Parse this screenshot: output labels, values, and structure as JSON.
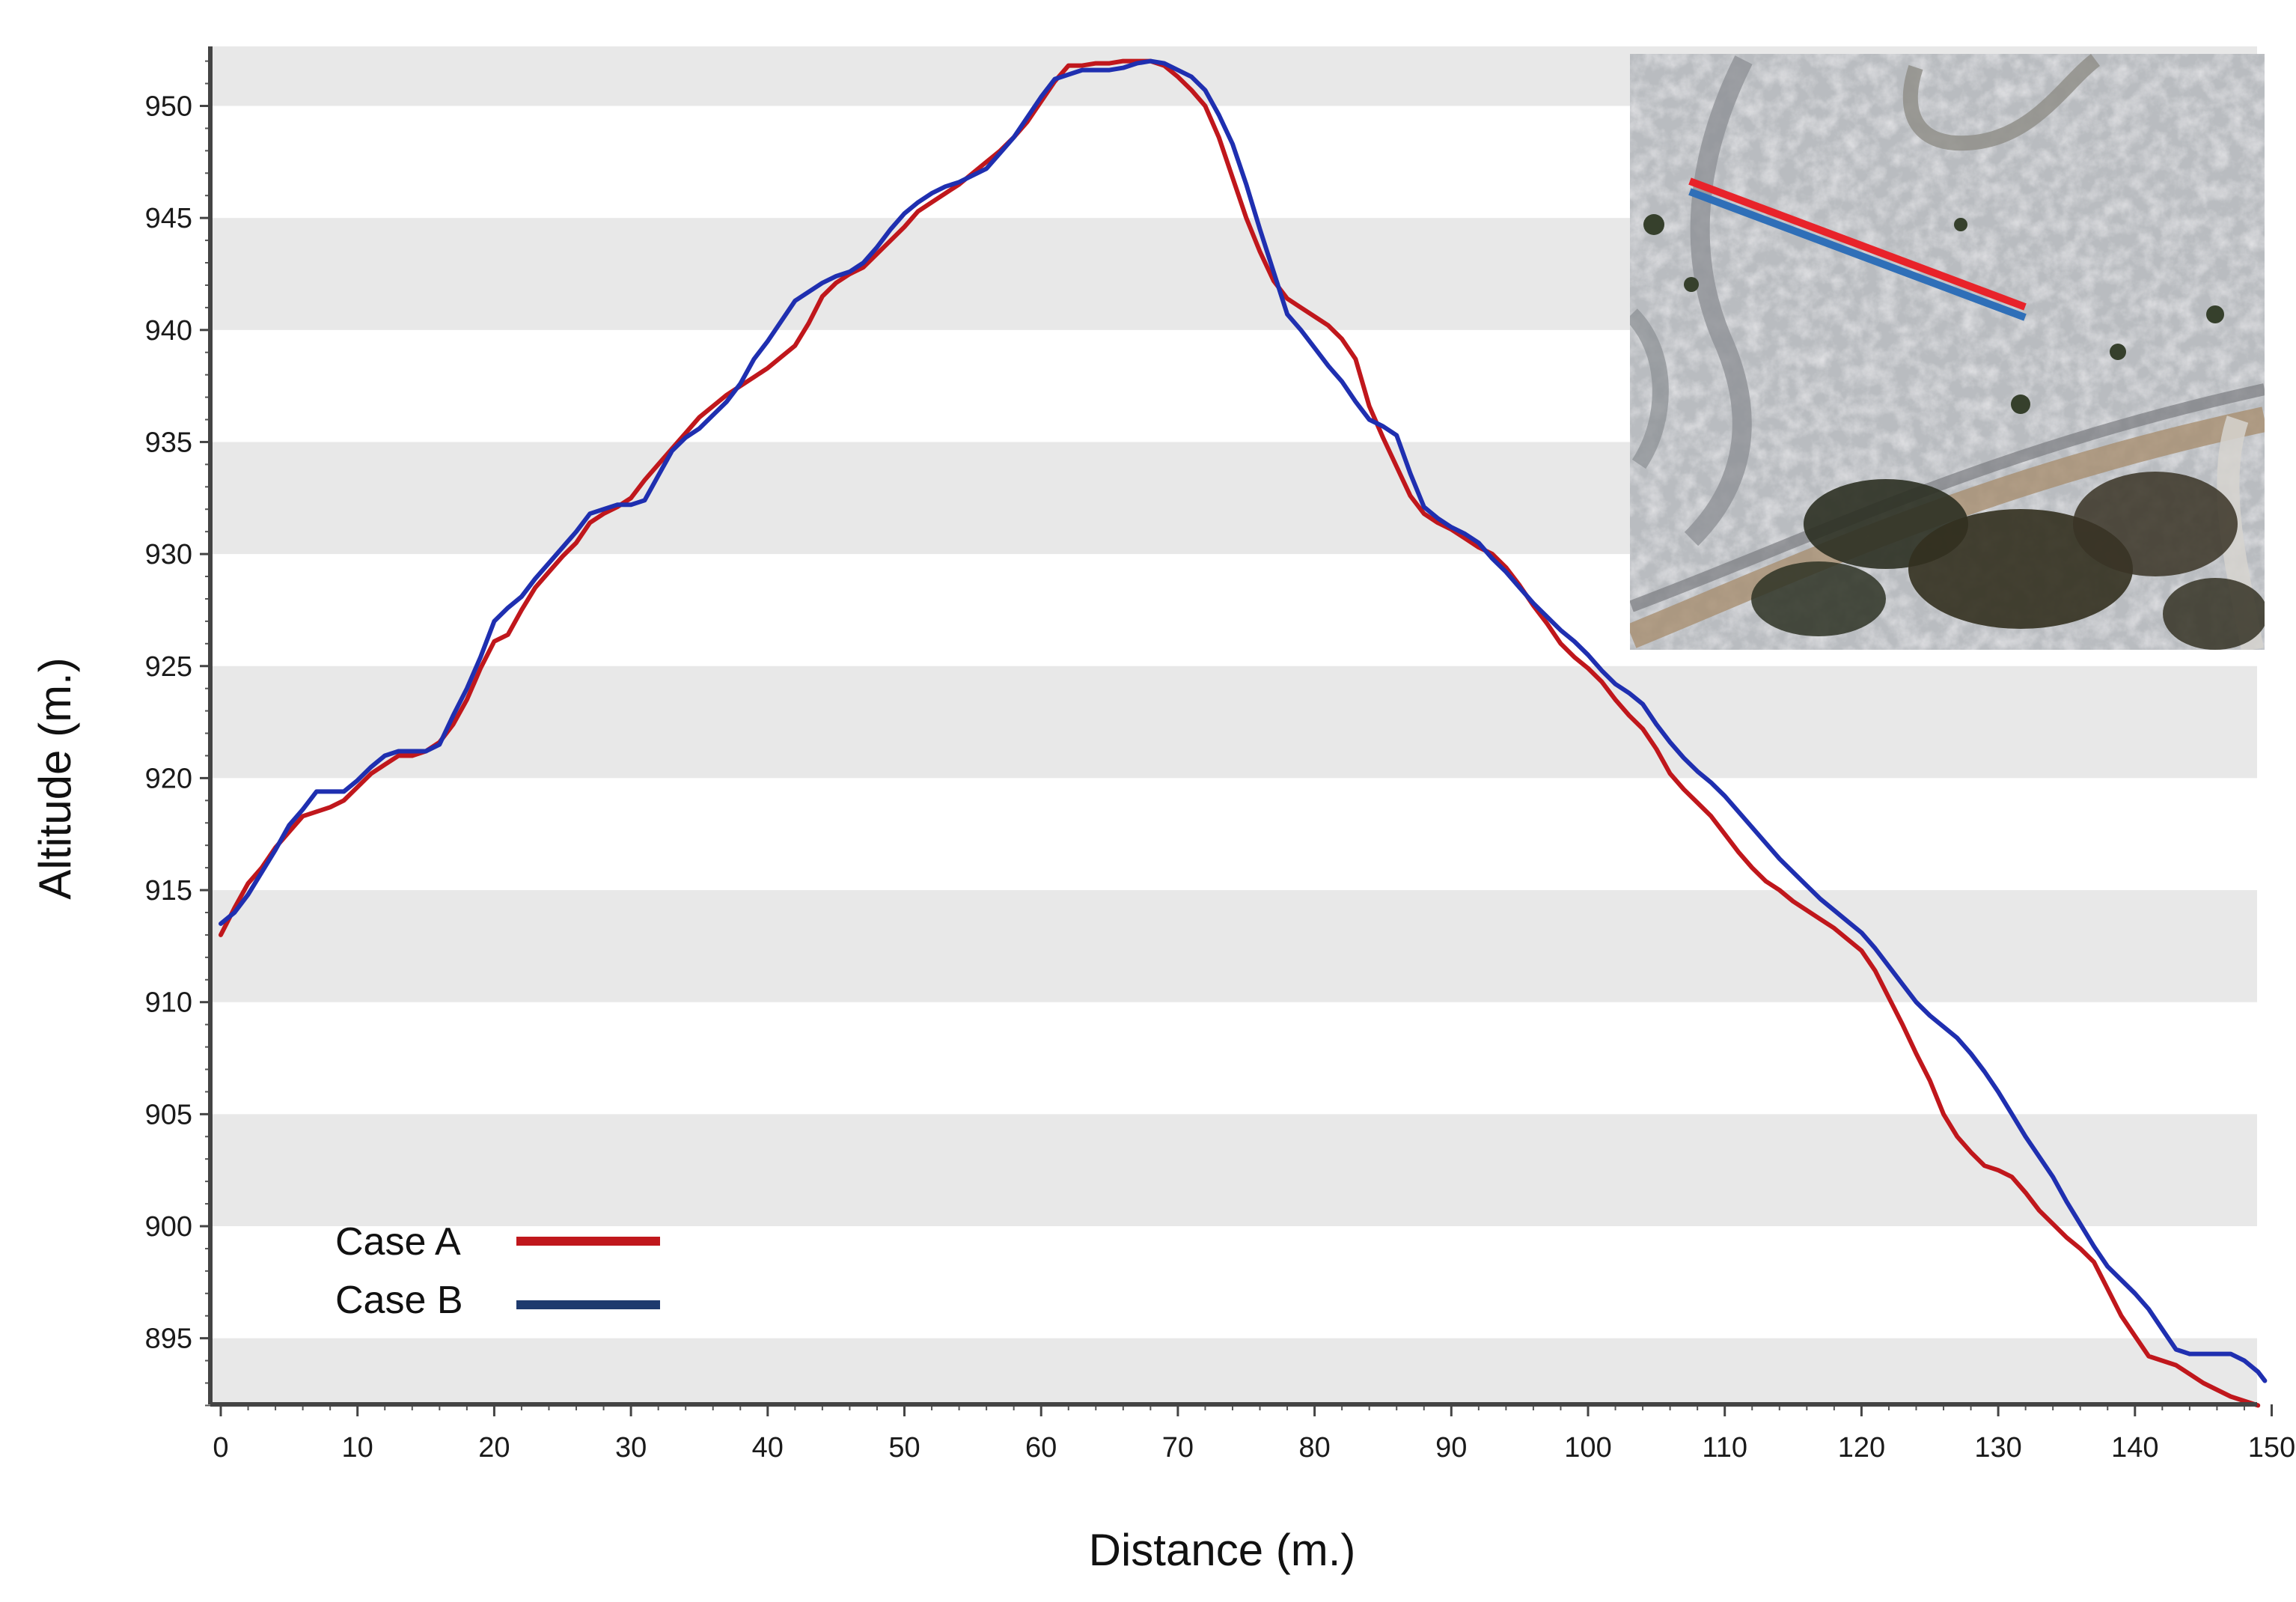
{
  "chart_data": {
    "type": "line",
    "title": "",
    "xlabel": "Distance (m.)",
    "ylabel": "Altitude (m.)",
    "xlim": [
      0,
      150
    ],
    "ylim": [
      891.5,
      952.3
    ],
    "x_ticks": [
      0,
      10,
      20,
      30,
      40,
      50,
      60,
      70,
      80,
      90,
      100,
      110,
      120,
      130,
      140,
      150
    ],
    "y_ticks": [
      895,
      900,
      905,
      910,
      915,
      920,
      925,
      930,
      935,
      940,
      945,
      950
    ],
    "background": "alternating grey/white horizontal bands every 5 m",
    "band_colors": [
      "#e8e8e8",
      "#ffffff"
    ],
    "legend_position": "lower-left",
    "inset": "aerial photograph at top-right showing the profile line in red and blue",
    "series": [
      {
        "name": "Case A",
        "color": "#c0171c",
        "points": [
          [
            0,
            913
          ],
          [
            1,
            914.2
          ],
          [
            2,
            915.3
          ],
          [
            3,
            916
          ],
          [
            4,
            916.9
          ],
          [
            5,
            917.6
          ],
          [
            6,
            918.3
          ],
          [
            7,
            918.5
          ],
          [
            8,
            918.7
          ],
          [
            9,
            919
          ],
          [
            10,
            919.6
          ],
          [
            11,
            920.2
          ],
          [
            12,
            920.6
          ],
          [
            13,
            921
          ],
          [
            14,
            921
          ],
          [
            15,
            921.2
          ],
          [
            16,
            921.6
          ],
          [
            17,
            922.4
          ],
          [
            18,
            923.5
          ],
          [
            19,
            924.9
          ],
          [
            20,
            926.1
          ],
          [
            21,
            926.4
          ],
          [
            22,
            927.5
          ],
          [
            23,
            928.5
          ],
          [
            24,
            929.2
          ],
          [
            25,
            929.9
          ],
          [
            26,
            930.5
          ],
          [
            27,
            931.4
          ],
          [
            28,
            931.8
          ],
          [
            29,
            932.1
          ],
          [
            30,
            932.5
          ],
          [
            31,
            933.3
          ],
          [
            32,
            934
          ],
          [
            33,
            934.7
          ],
          [
            34,
            935.4
          ],
          [
            35,
            936.1
          ],
          [
            36,
            936.6
          ],
          [
            37,
            937.1
          ],
          [
            38,
            937.5
          ],
          [
            39,
            937.9
          ],
          [
            40,
            938.3
          ],
          [
            41,
            938.8
          ],
          [
            42,
            939.3
          ],
          [
            43,
            940.3
          ],
          [
            44,
            941.5
          ],
          [
            45,
            942.1
          ],
          [
            46,
            942.5
          ],
          [
            47,
            942.8
          ],
          [
            48,
            943.4
          ],
          [
            49,
            944
          ],
          [
            50,
            944.6
          ],
          [
            51,
            945.3
          ],
          [
            52,
            945.7
          ],
          [
            53,
            946.1
          ],
          [
            54,
            946.5
          ],
          [
            55,
            947
          ],
          [
            56,
            947.5
          ],
          [
            57,
            948
          ],
          [
            58,
            948.6
          ],
          [
            59,
            949.3
          ],
          [
            60,
            950.2
          ],
          [
            61,
            951.1
          ],
          [
            62,
            951.8
          ],
          [
            63,
            951.8
          ],
          [
            64,
            951.9
          ],
          [
            65,
            951.9
          ],
          [
            66,
            952
          ],
          [
            67,
            952
          ],
          [
            68,
            952
          ],
          [
            69,
            951.8
          ],
          [
            70,
            951.3
          ],
          [
            71,
            950.7
          ],
          [
            72,
            950
          ],
          [
            73,
            948.6
          ],
          [
            74,
            946.8
          ],
          [
            75,
            945
          ],
          [
            76,
            943.5
          ],
          [
            77,
            942.2
          ],
          [
            78,
            941.4
          ],
          [
            79,
            941
          ],
          [
            80,
            940.6
          ],
          [
            81,
            940.2
          ],
          [
            82,
            939.6
          ],
          [
            83,
            938.7
          ],
          [
            84,
            936.6
          ],
          [
            85,
            935.2
          ],
          [
            86,
            933.9
          ],
          [
            87,
            932.6
          ],
          [
            88,
            931.8
          ],
          [
            89,
            931.4
          ],
          [
            90,
            931.1
          ],
          [
            91,
            930.7
          ],
          [
            92,
            930.3
          ],
          [
            93,
            930
          ],
          [
            94,
            929.4
          ],
          [
            95,
            928.6
          ],
          [
            96,
            927.7
          ],
          [
            97,
            926.9
          ],
          [
            98,
            926
          ],
          [
            99,
            925.4
          ],
          [
            100,
            924.9
          ],
          [
            101,
            924.3
          ],
          [
            102,
            923.5
          ],
          [
            103,
            922.8
          ],
          [
            104,
            922.2
          ],
          [
            105,
            921.3
          ],
          [
            106,
            920.2
          ],
          [
            107,
            919.5
          ],
          [
            108,
            918.9
          ],
          [
            109,
            918.3
          ],
          [
            110,
            917.5
          ],
          [
            111,
            916.7
          ],
          [
            112,
            916
          ],
          [
            113,
            915.4
          ],
          [
            114,
            915
          ],
          [
            115,
            914.5
          ],
          [
            116,
            914.1
          ],
          [
            117,
            913.7
          ],
          [
            118,
            913.3
          ],
          [
            119,
            912.8
          ],
          [
            120,
            912.3
          ],
          [
            121,
            911.4
          ],
          [
            122,
            910.2
          ],
          [
            123,
            909
          ],
          [
            124,
            907.7
          ],
          [
            125,
            906.5
          ],
          [
            126,
            905
          ],
          [
            127,
            904
          ],
          [
            128,
            903.3
          ],
          [
            129,
            902.7
          ],
          [
            130,
            902.5
          ],
          [
            131,
            902.2
          ],
          [
            132,
            901.5
          ],
          [
            133,
            900.7
          ],
          [
            134,
            900.1
          ],
          [
            135,
            899.5
          ],
          [
            136,
            899
          ],
          [
            137,
            898.4
          ],
          [
            138,
            897.2
          ],
          [
            139,
            896
          ],
          [
            140,
            895.1
          ],
          [
            141,
            894.2
          ],
          [
            142,
            894
          ],
          [
            143,
            893.8
          ],
          [
            144,
            893.4
          ],
          [
            145,
            893
          ],
          [
            146,
            892.7
          ],
          [
            147,
            892.4
          ],
          [
            148,
            892.2
          ],
          [
            149,
            892
          ]
        ]
      },
      {
        "name": "Case B",
        "color": "#1f2fb0",
        "points": [
          [
            0,
            913.5
          ],
          [
            1,
            914
          ],
          [
            2,
            914.8
          ],
          [
            3,
            915.8
          ],
          [
            4,
            916.8
          ],
          [
            5,
            917.9
          ],
          [
            6,
            918.6
          ],
          [
            7,
            919.4
          ],
          [
            8,
            919.4
          ],
          [
            9,
            919.4
          ],
          [
            10,
            919.9
          ],
          [
            11,
            920.5
          ],
          [
            12,
            921
          ],
          [
            13,
            921.2
          ],
          [
            14,
            921.2
          ],
          [
            15,
            921.2
          ],
          [
            16,
            921.5
          ],
          [
            17,
            922.8
          ],
          [
            18,
            924
          ],
          [
            19,
            925.4
          ],
          [
            20,
            927
          ],
          [
            21,
            927.6
          ],
          [
            22,
            928.1
          ],
          [
            23,
            928.9
          ],
          [
            24,
            929.6
          ],
          [
            25,
            930.3
          ],
          [
            26,
            931
          ],
          [
            27,
            931.8
          ],
          [
            28,
            932
          ],
          [
            29,
            932.2
          ],
          [
            30,
            932.2
          ],
          [
            31,
            932.4
          ],
          [
            32,
            933.5
          ],
          [
            33,
            934.6
          ],
          [
            34,
            935.2
          ],
          [
            35,
            935.6
          ],
          [
            36,
            936.2
          ],
          [
            37,
            936.8
          ],
          [
            38,
            937.6
          ],
          [
            39,
            938.7
          ],
          [
            40,
            939.5
          ],
          [
            41,
            940.4
          ],
          [
            42,
            941.3
          ],
          [
            43,
            941.7
          ],
          [
            44,
            942.1
          ],
          [
            45,
            942.4
          ],
          [
            46,
            942.6
          ],
          [
            47,
            943
          ],
          [
            48,
            943.7
          ],
          [
            49,
            944.5
          ],
          [
            50,
            945.2
          ],
          [
            51,
            945.7
          ],
          [
            52,
            946.1
          ],
          [
            53,
            946.4
          ],
          [
            54,
            946.6
          ],
          [
            55,
            946.9
          ],
          [
            56,
            947.2
          ],
          [
            57,
            947.9
          ],
          [
            58,
            948.6
          ],
          [
            59,
            949.5
          ],
          [
            60,
            950.4
          ],
          [
            61,
            951.2
          ],
          [
            62,
            951.4
          ],
          [
            63,
            951.6
          ],
          [
            64,
            951.6
          ],
          [
            65,
            951.6
          ],
          [
            66,
            951.7
          ],
          [
            67,
            951.9
          ],
          [
            68,
            952
          ],
          [
            69,
            951.9
          ],
          [
            70,
            951.6
          ],
          [
            71,
            951.3
          ],
          [
            72,
            950.7
          ],
          [
            73,
            949.6
          ],
          [
            74,
            948.3
          ],
          [
            75,
            946.5
          ],
          [
            76,
            944.5
          ],
          [
            77,
            942.6
          ],
          [
            78,
            940.7
          ],
          [
            79,
            940
          ],
          [
            80,
            939.2
          ],
          [
            81,
            938.4
          ],
          [
            82,
            937.7
          ],
          [
            83,
            936.8
          ],
          [
            84,
            936
          ],
          [
            85,
            935.7
          ],
          [
            86,
            935.3
          ],
          [
            87,
            933.6
          ],
          [
            88,
            932.1
          ],
          [
            89,
            931.6
          ],
          [
            90,
            931.2
          ],
          [
            91,
            930.9
          ],
          [
            92,
            930.5
          ],
          [
            93,
            929.8
          ],
          [
            94,
            929.2
          ],
          [
            95,
            928.5
          ],
          [
            96,
            927.8
          ],
          [
            97,
            927.2
          ],
          [
            98,
            926.6
          ],
          [
            99,
            926.1
          ],
          [
            100,
            925.5
          ],
          [
            101,
            924.8
          ],
          [
            102,
            924.2
          ],
          [
            103,
            923.8
          ],
          [
            104,
            923.3
          ],
          [
            105,
            922.4
          ],
          [
            106,
            921.6
          ],
          [
            107,
            920.9
          ],
          [
            108,
            920.3
          ],
          [
            109,
            919.8
          ],
          [
            110,
            919.2
          ],
          [
            111,
            918.5
          ],
          [
            112,
            917.8
          ],
          [
            113,
            917.1
          ],
          [
            114,
            916.4
          ],
          [
            115,
            915.8
          ],
          [
            116,
            915.2
          ],
          [
            117,
            914.6
          ],
          [
            118,
            914.1
          ],
          [
            119,
            913.6
          ],
          [
            120,
            913.1
          ],
          [
            121,
            912.4
          ],
          [
            122,
            911.6
          ],
          [
            123,
            910.8
          ],
          [
            124,
            910
          ],
          [
            125,
            909.4
          ],
          [
            126,
            908.9
          ],
          [
            127,
            908.4
          ],
          [
            128,
            907.7
          ],
          [
            129,
            906.9
          ],
          [
            130,
            906
          ],
          [
            131,
            905
          ],
          [
            132,
            904
          ],
          [
            133,
            903.1
          ],
          [
            134,
            902.2
          ],
          [
            135,
            901.1
          ],
          [
            136,
            900.1
          ],
          [
            137,
            899.1
          ],
          [
            138,
            898.2
          ],
          [
            139,
            897.6
          ],
          [
            140,
            897
          ],
          [
            141,
            896.3
          ],
          [
            142,
            895.4
          ],
          [
            143,
            894.5
          ],
          [
            144,
            894.3
          ],
          [
            145,
            894.3
          ],
          [
            146,
            894.3
          ],
          [
            147,
            894.3
          ],
          [
            148,
            894
          ],
          [
            149,
            893.5
          ],
          [
            149.5,
            893.1
          ]
        ]
      }
    ]
  }
}
